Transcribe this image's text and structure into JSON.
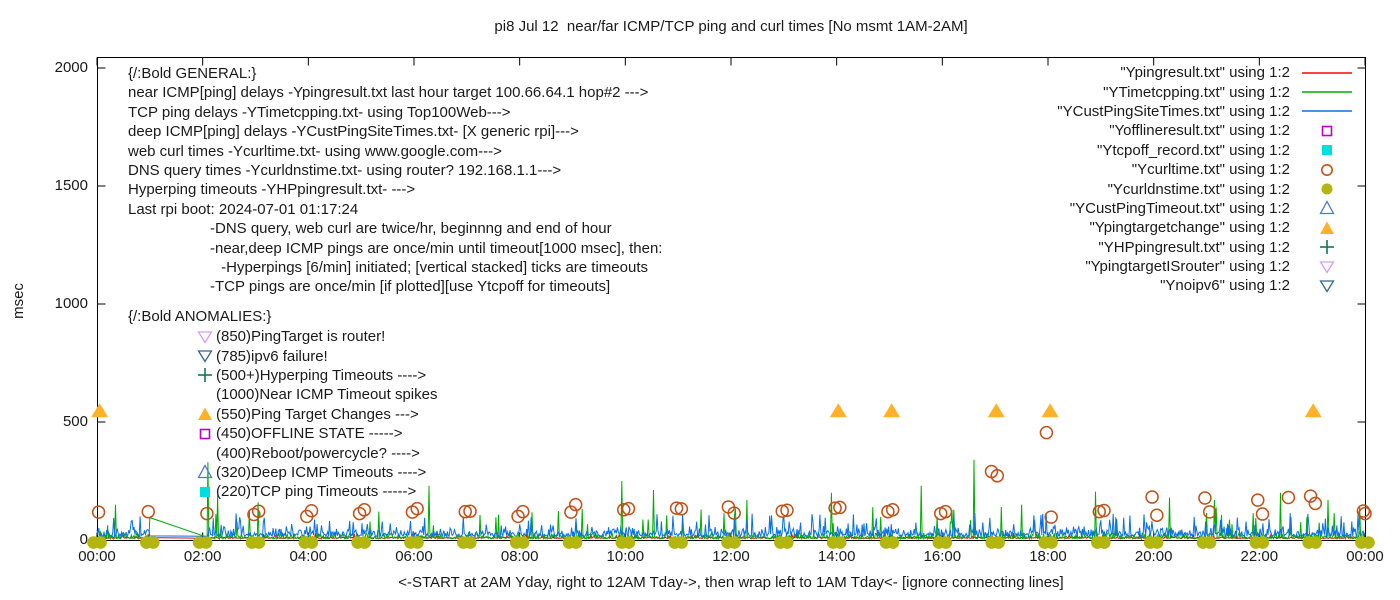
{
  "title": "pi8 Jul 12  near/far ICMP/TCP ping and curl times [No msmt 1AM-2AM]",
  "ylabel": "msec",
  "xcaption": "<-START at 2AM Yday, right to 12AM Tday->, then wrap left to 1AM Tday<- [ignore connecting lines]",
  "general": {
    "lines": [
      "{/:Bold GENERAL:}",
      "near ICMP[ping] delays -Ypingresult.txt last hour target 100.66.64.1 hop#2 --->",
      "TCP ping delays -YTimetcpping.txt- using Top100Web--->",
      "deep ICMP[ping] delays -YCustPingSiteTimes.txt- [X generic rpi]--->",
      "web curl times -Ycurltime.txt- using www.google.com--->",
      "DNS query times -Ycurldnstime.txt- using router? 192.168.1.1--->",
      "Hyperping timeouts -YHPpingresult.txt- --->",
      "Last rpi boot: 2024-07-01 01:17:24"
    ],
    "sub_lines": [
      "-DNS query, web curl are twice/hr, beginnng and end of hour",
      "-near,deep ICMP pings are once/min until timeout[1000 msec], then:",
      " -Hyperpings [6/min] initiated; [vertical stacked] ticks are timeouts",
      "-TCP pings are once/min [if plotted][use Ytcpoff for timeouts]"
    ]
  },
  "anomalies_title": "{/:Bold ANOMALIES:}",
  "anomalies": [
    {
      "marker": "tri-down-open",
      "color": "#d79df0",
      "text": "(850)PingTarget is router!"
    },
    {
      "marker": "tri-down-open",
      "color": "#31688c",
      "text": "(785)ipv6 failure!"
    },
    {
      "marker": "plus",
      "color": "#0e7a50",
      "text": "(500+)Hyperping Timeouts ---->"
    },
    {
      "marker": "none",
      "color": "",
      "text": "(1000)Near ICMP Timeout spikes"
    },
    {
      "marker": "tri-up-fill",
      "color": "#ffb127",
      "text": "(550)Ping Target Changes --->"
    },
    {
      "marker": "square-open",
      "color": "#bf00cf",
      "text": "(450)OFFLINE STATE ----->"
    },
    {
      "marker": "none",
      "color": "",
      "text": "(400)Reboot/powercycle? ---->"
    },
    {
      "marker": "tri-up-open",
      "color": "#4d79cf",
      "text": "(320)Deep ICMP Timeouts ---->"
    },
    {
      "marker": "square-fill",
      "color": "#00dede",
      "text": "(220)TCP ping Timeouts ----->"
    }
  ],
  "legend": [
    {
      "label": "\"Ypingresult.txt\" using 1:2",
      "marker": "line",
      "color": "#ff0000"
    },
    {
      "label": "\"YTimetcpping.txt\" using 1:2",
      "marker": "line",
      "color": "#00ad00"
    },
    {
      "label": "\"YCustPingSiteTimes.txt\" using 1:2",
      "marker": "line",
      "color": "#0a70e8"
    },
    {
      "label": "\"Yofflineresult.txt\" using 1:2",
      "marker": "square-open",
      "color": "#bf00cf"
    },
    {
      "label": "\"Ytcpoff_record.txt\" using 1:2",
      "marker": "square-fill",
      "color": "#00dede"
    },
    {
      "label": "\"Ycurltime.txt\" using 1:2",
      "marker": "circle-open",
      "color": "#c35017"
    },
    {
      "label": "\"Ycurldnstime.txt\" using 1:2",
      "marker": "circle-fill",
      "color": "#b2b60e"
    },
    {
      "label": "\"YCustPingTimeout.txt\" using 1:2",
      "marker": "tri-up-open",
      "color": "#4d79cf"
    },
    {
      "label": "\"Ypingtargetchange\" using 1:2",
      "marker": "tri-up-fill",
      "color": "#ffb127"
    },
    {
      "label": "\"YHPpingresult.txt\" using 1:2",
      "marker": "plus",
      "color": "#0e7a50"
    },
    {
      "label": "\"YpingtargetISrouter\" using 1:2",
      "marker": "tri-down-open",
      "color": "#d79df0"
    },
    {
      "label": "\"Ynoipv6\" using 1:2",
      "marker": "tri-down-open",
      "color": "#31688c"
    }
  ],
  "chart_data": {
    "type": "line+scatter",
    "title": "pi8 Jul 12  near/far ICMP/TCP ping and curl times [No msmt 1AM-2AM]",
    "xlabel": "<-START at 2AM Yday, right to 12AM Tday->, then wrap left to 1AM Tday<- [ignore connecting lines]",
    "ylabel": "msec",
    "xlim_hours": [
      0,
      24
    ],
    "ylim": [
      0,
      2050
    ],
    "ytick_values": [
      0,
      500,
      1000,
      1500,
      2000
    ],
    "ytick_labels": [
      "0",
      "500",
      "1000",
      "1500",
      "2000"
    ],
    "xtick_hours": [
      0,
      2,
      4,
      6,
      8,
      10,
      12,
      14,
      16,
      18,
      20,
      22,
      24
    ],
    "xtick_labels": [
      "00:00",
      "02:00",
      "04:00",
      "06:00",
      "08:00",
      "10:00",
      "12:00",
      "14:00",
      "16:00",
      "18:00",
      "20:00",
      "22:00",
      "00:00"
    ],
    "grid": false,
    "legend_position": "top-right",
    "measurement_gap_hours": [
      1.0,
      2.083
    ],
    "noise_seed": 1337,
    "samples_per_hour": 60,
    "series": [
      {
        "name": "Ypingresult.txt",
        "color": "#ff0000",
        "kind": "noisy-line",
        "base": 7,
        "amp": 9,
        "spike_p": 0.02,
        "spike_min": 18,
        "spike_max": 30
      },
      {
        "name": "YTimetcpping.txt",
        "color": "#00ad00",
        "kind": "noisy-line",
        "base": 5,
        "amp": 32,
        "spike_p": 0.035,
        "spike_min": 60,
        "spike_max": 140,
        "gap_start_value": 95
      },
      {
        "name": "YCustPingSiteTimes.txt",
        "color": "#0a70e8",
        "kind": "noisy-line",
        "base": 15,
        "amp": 55,
        "spike_p": 0.06,
        "spike_min": 65,
        "spike_max": 115
      }
    ],
    "green_spikes_hours_msec": [
      [
        0.35,
        150
      ],
      [
        2.1,
        330
      ],
      [
        2.28,
        190
      ],
      [
        3.05,
        160
      ],
      [
        6.28,
        230
      ],
      [
        9.93,
        250
      ],
      [
        10.53,
        212
      ],
      [
        12.3,
        170
      ],
      [
        13.9,
        200
      ],
      [
        15.6,
        230
      ],
      [
        16.6,
        340
      ],
      [
        17.5,
        150
      ],
      [
        18.9,
        205
      ],
      [
        20.3,
        180
      ],
      [
        21.15,
        170
      ],
      [
        22.4,
        200
      ],
      [
        23.3,
        170
      ]
    ],
    "curl_times_hours_msec": [
      [
        0.03,
        118
      ],
      [
        0.97,
        120
      ],
      [
        2.08,
        112
      ],
      [
        2.97,
        108
      ],
      [
        3.06,
        122
      ],
      [
        3.97,
        100
      ],
      [
        4.06,
        124
      ],
      [
        4.97,
        112
      ],
      [
        5.06,
        128
      ],
      [
        5.97,
        118
      ],
      [
        6.06,
        133
      ],
      [
        6.97,
        120
      ],
      [
        7.06,
        122
      ],
      [
        7.97,
        100
      ],
      [
        8.06,
        120
      ],
      [
        8.97,
        118
      ],
      [
        9.06,
        150
      ],
      [
        9.97,
        128
      ],
      [
        10.06,
        133
      ],
      [
        10.97,
        135
      ],
      [
        11.06,
        132
      ],
      [
        11.95,
        140
      ],
      [
        12.06,
        114
      ],
      [
        12.97,
        122
      ],
      [
        13.06,
        126
      ],
      [
        13.97,
        135
      ],
      [
        14.06,
        138
      ],
      [
        14.97,
        120
      ],
      [
        15.06,
        128
      ],
      [
        15.97,
        112
      ],
      [
        16.06,
        120
      ],
      [
        16.93,
        290
      ],
      [
        17.04,
        272
      ],
      [
        17.97,
        455
      ],
      [
        18.06,
        97
      ],
      [
        18.97,
        120
      ],
      [
        19.06,
        125
      ],
      [
        19.97,
        182
      ],
      [
        20.06,
        105
      ],
      [
        20.97,
        178
      ],
      [
        21.06,
        119
      ],
      [
        21.97,
        169
      ],
      [
        22.06,
        110
      ],
      [
        22.55,
        180
      ],
      [
        22.97,
        186
      ],
      [
        23.06,
        155
      ],
      [
        23.97,
        123
      ],
      [
        24.0,
        112
      ]
    ],
    "dns_query_hours": [
      0,
      1,
      2,
      3,
      4,
      5,
      6,
      7,
      8,
      9,
      10,
      11,
      12,
      13,
      14,
      15,
      16,
      17,
      18,
      19,
      20,
      21,
      22,
      23,
      24
    ],
    "dns_query_msec": 2,
    "ping_target_changes": {
      "msec": 550,
      "hours": [
        0.05,
        14.03,
        15.04,
        17.02,
        18.04,
        23.02
      ]
    },
    "marker_colors": {
      "curl_circle": "#c35017",
      "dns_circle": "#b2b60e",
      "target_change_triangle": "#ffb127"
    }
  }
}
